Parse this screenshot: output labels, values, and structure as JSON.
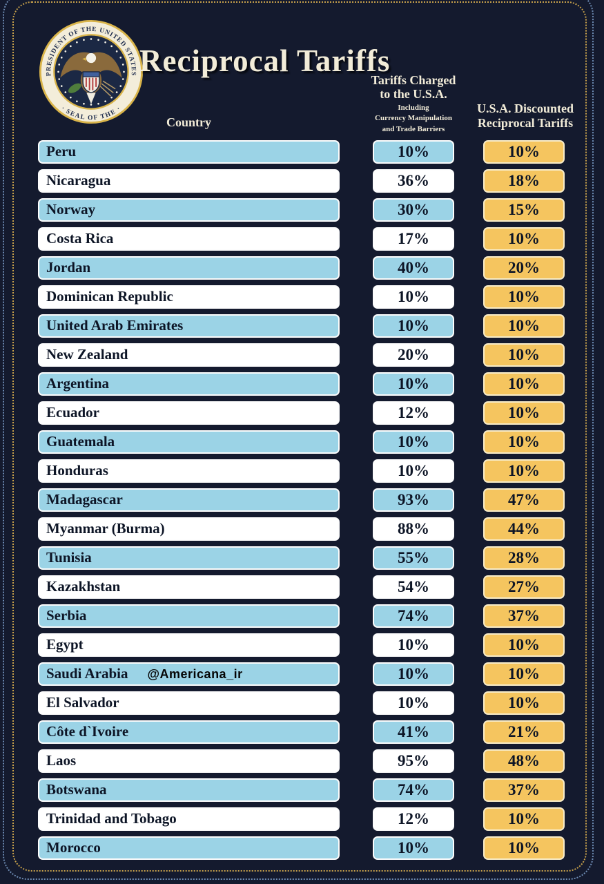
{
  "header": {
    "title": "Reciprocal Tariffs",
    "country_column_label": "Country",
    "charged_column": {
      "line1": "Tariffs Charged",
      "line2": "to the U.S.A.",
      "sub1": "Including",
      "sub2": "Currency Manipulation",
      "sub3": "and Trade Barriers"
    },
    "reciprocal_column": {
      "line1": "U.S.A. Discounted",
      "line2": "Reciprocal Tariffs"
    },
    "seal": {
      "top_text": "PRESIDENT OF THE UNITED STATES",
      "bottom_text": "· SEAL OF THE ·"
    }
  },
  "watermark": {
    "text": "@Americana_ir",
    "row_index": 18
  },
  "colors": {
    "background": "#141a2e",
    "row_blue": "#9bd3e6",
    "row_white": "#ffffff",
    "reciprocal_gold": "#f5c55f",
    "header_text": "#f2ecd8",
    "cell_text": "#0d1526",
    "border_dots_gold": "#c9a24b",
    "border_dots_blue": "#6e8cb4"
  },
  "chart_data": {
    "type": "table",
    "title": "Reciprocal Tariffs",
    "columns": [
      "Country",
      "Tariffs Charged to the U.S.A. Including Currency Manipulation and Trade Barriers",
      "U.S.A. Discounted Reciprocal Tariffs"
    ],
    "rows": [
      [
        "Peru",
        "10%",
        "10%"
      ],
      [
        "Nicaragua",
        "36%",
        "18%"
      ],
      [
        "Norway",
        "30%",
        "15%"
      ],
      [
        "Costa Rica",
        "17%",
        "10%"
      ],
      [
        "Jordan",
        "40%",
        "20%"
      ],
      [
        "Dominican Republic",
        "10%",
        "10%"
      ],
      [
        "United Arab Emirates",
        "10%",
        "10%"
      ],
      [
        "New Zealand",
        "20%",
        "10%"
      ],
      [
        "Argentina",
        "10%",
        "10%"
      ],
      [
        "Ecuador",
        "12%",
        "10%"
      ],
      [
        "Guatemala",
        "10%",
        "10%"
      ],
      [
        "Honduras",
        "10%",
        "10%"
      ],
      [
        "Madagascar",
        "93%",
        "47%"
      ],
      [
        "Myanmar (Burma)",
        "88%",
        "44%"
      ],
      [
        "Tunisia",
        "55%",
        "28%"
      ],
      [
        "Kazakhstan",
        "54%",
        "27%"
      ],
      [
        "Serbia",
        "74%",
        "37%"
      ],
      [
        "Egypt",
        "10%",
        "10%"
      ],
      [
        "Saudi Arabia",
        "10%",
        "10%"
      ],
      [
        "El Salvador",
        "10%",
        "10%"
      ],
      [
        "Côte d`Ivoire",
        "41%",
        "21%"
      ],
      [
        "Laos",
        "95%",
        "48%"
      ],
      [
        "Botswana",
        "74%",
        "37%"
      ],
      [
        "Trinidad and Tobago",
        "12%",
        "10%"
      ],
      [
        "Morocco",
        "10%",
        "10%"
      ]
    ]
  }
}
